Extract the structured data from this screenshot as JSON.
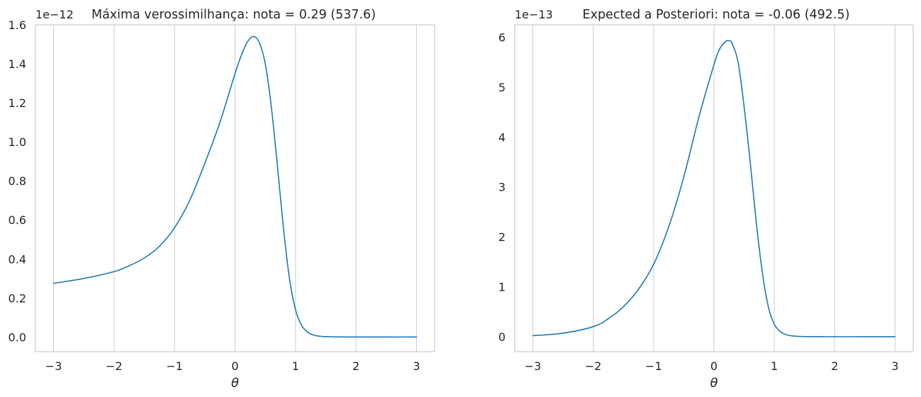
{
  "chart_data": [
    {
      "type": "line",
      "title": "Máxima verossimilhança: nota = 0.29 (537.6)",
      "xlabel": "θ",
      "ylabel": "",
      "y_offset_label": "1e−12",
      "xlim": [
        -3.3,
        3.3
      ],
      "ylim": [
        -0.075,
        1.6
      ],
      "y_scale": 1e-12,
      "grid": "vertical",
      "x_ticks": [
        -3,
        -2,
        -1,
        0,
        1,
        2,
        3
      ],
      "x_tick_labels": [
        "−3",
        "−2",
        "−1",
        "0",
        "1",
        "2",
        "3"
      ],
      "y_ticks": [
        0,
        0.2,
        0.4,
        0.6,
        0.8,
        1.0,
        1.2,
        1.4,
        1.6
      ],
      "y_tick_labels": [
        "0.0",
        "0.2",
        "0.4",
        "0.6",
        "0.8",
        "1.0",
        "1.2",
        "1.4",
        "1.6"
      ],
      "color": "#1f77b4",
      "series": [
        {
          "x": [
            -3.0,
            -2.5,
            -2.0,
            -1.75,
            -1.5,
            -1.25,
            -1.0,
            -0.75,
            -0.5,
            -0.25,
            0.0,
            0.1,
            0.2,
            0.3,
            0.4,
            0.5,
            0.6,
            0.7,
            0.8,
            0.9,
            1.0,
            1.1,
            1.2,
            1.3,
            1.4,
            1.5,
            1.75,
            2.0,
            2.5,
            3.0
          ],
          "y": [
            0.275,
            0.3,
            0.335,
            0.365,
            0.405,
            0.465,
            0.56,
            0.7,
            0.89,
            1.1,
            1.35,
            1.44,
            1.51,
            1.54,
            1.51,
            1.4,
            1.18,
            0.88,
            0.56,
            0.3,
            0.14,
            0.06,
            0.025,
            0.01,
            0.004,
            0.002,
            0.0005,
            0.0002,
            0.0,
            0.0
          ]
        }
      ]
    },
    {
      "type": "line",
      "title": "Expected a Posteriori: nota = -0.06 (492.5)",
      "xlabel": "θ",
      "ylabel": "",
      "y_offset_label": "1e−13",
      "xlim": [
        -3.3,
        3.3
      ],
      "ylim": [
        -0.3,
        6.25
      ],
      "y_scale": 1e-13,
      "grid": "vertical",
      "x_ticks": [
        -3,
        -2,
        -1,
        0,
        1,
        2,
        3
      ],
      "x_tick_labels": [
        "−3",
        "−2",
        "−1",
        "0",
        "1",
        "2",
        "3"
      ],
      "y_ticks": [
        0,
        1,
        2,
        3,
        4,
        5,
        6
      ],
      "y_tick_labels": [
        "0",
        "1",
        "2",
        "3",
        "4",
        "5",
        "6"
      ],
      "color": "#1f77b4",
      "series": [
        {
          "x": [
            -3.0,
            -2.5,
            -2.0,
            -1.75,
            -1.5,
            -1.25,
            -1.0,
            -0.75,
            -0.5,
            -0.25,
            0.0,
            0.1,
            0.2,
            0.25,
            0.3,
            0.4,
            0.5,
            0.6,
            0.7,
            0.8,
            0.9,
            1.0,
            1.1,
            1.2,
            1.3,
            1.4,
            1.5,
            1.75,
            2.0,
            2.5,
            3.0
          ],
          "y": [
            0.02,
            0.07,
            0.2,
            0.36,
            0.6,
            0.95,
            1.45,
            2.2,
            3.2,
            4.4,
            5.45,
            5.78,
            5.92,
            5.93,
            5.88,
            5.5,
            4.6,
            3.5,
            2.3,
            1.3,
            0.6,
            0.25,
            0.1,
            0.04,
            0.015,
            0.006,
            0.002,
            0.0005,
            0.0001,
            0.0,
            0.0
          ]
        }
      ]
    }
  ]
}
